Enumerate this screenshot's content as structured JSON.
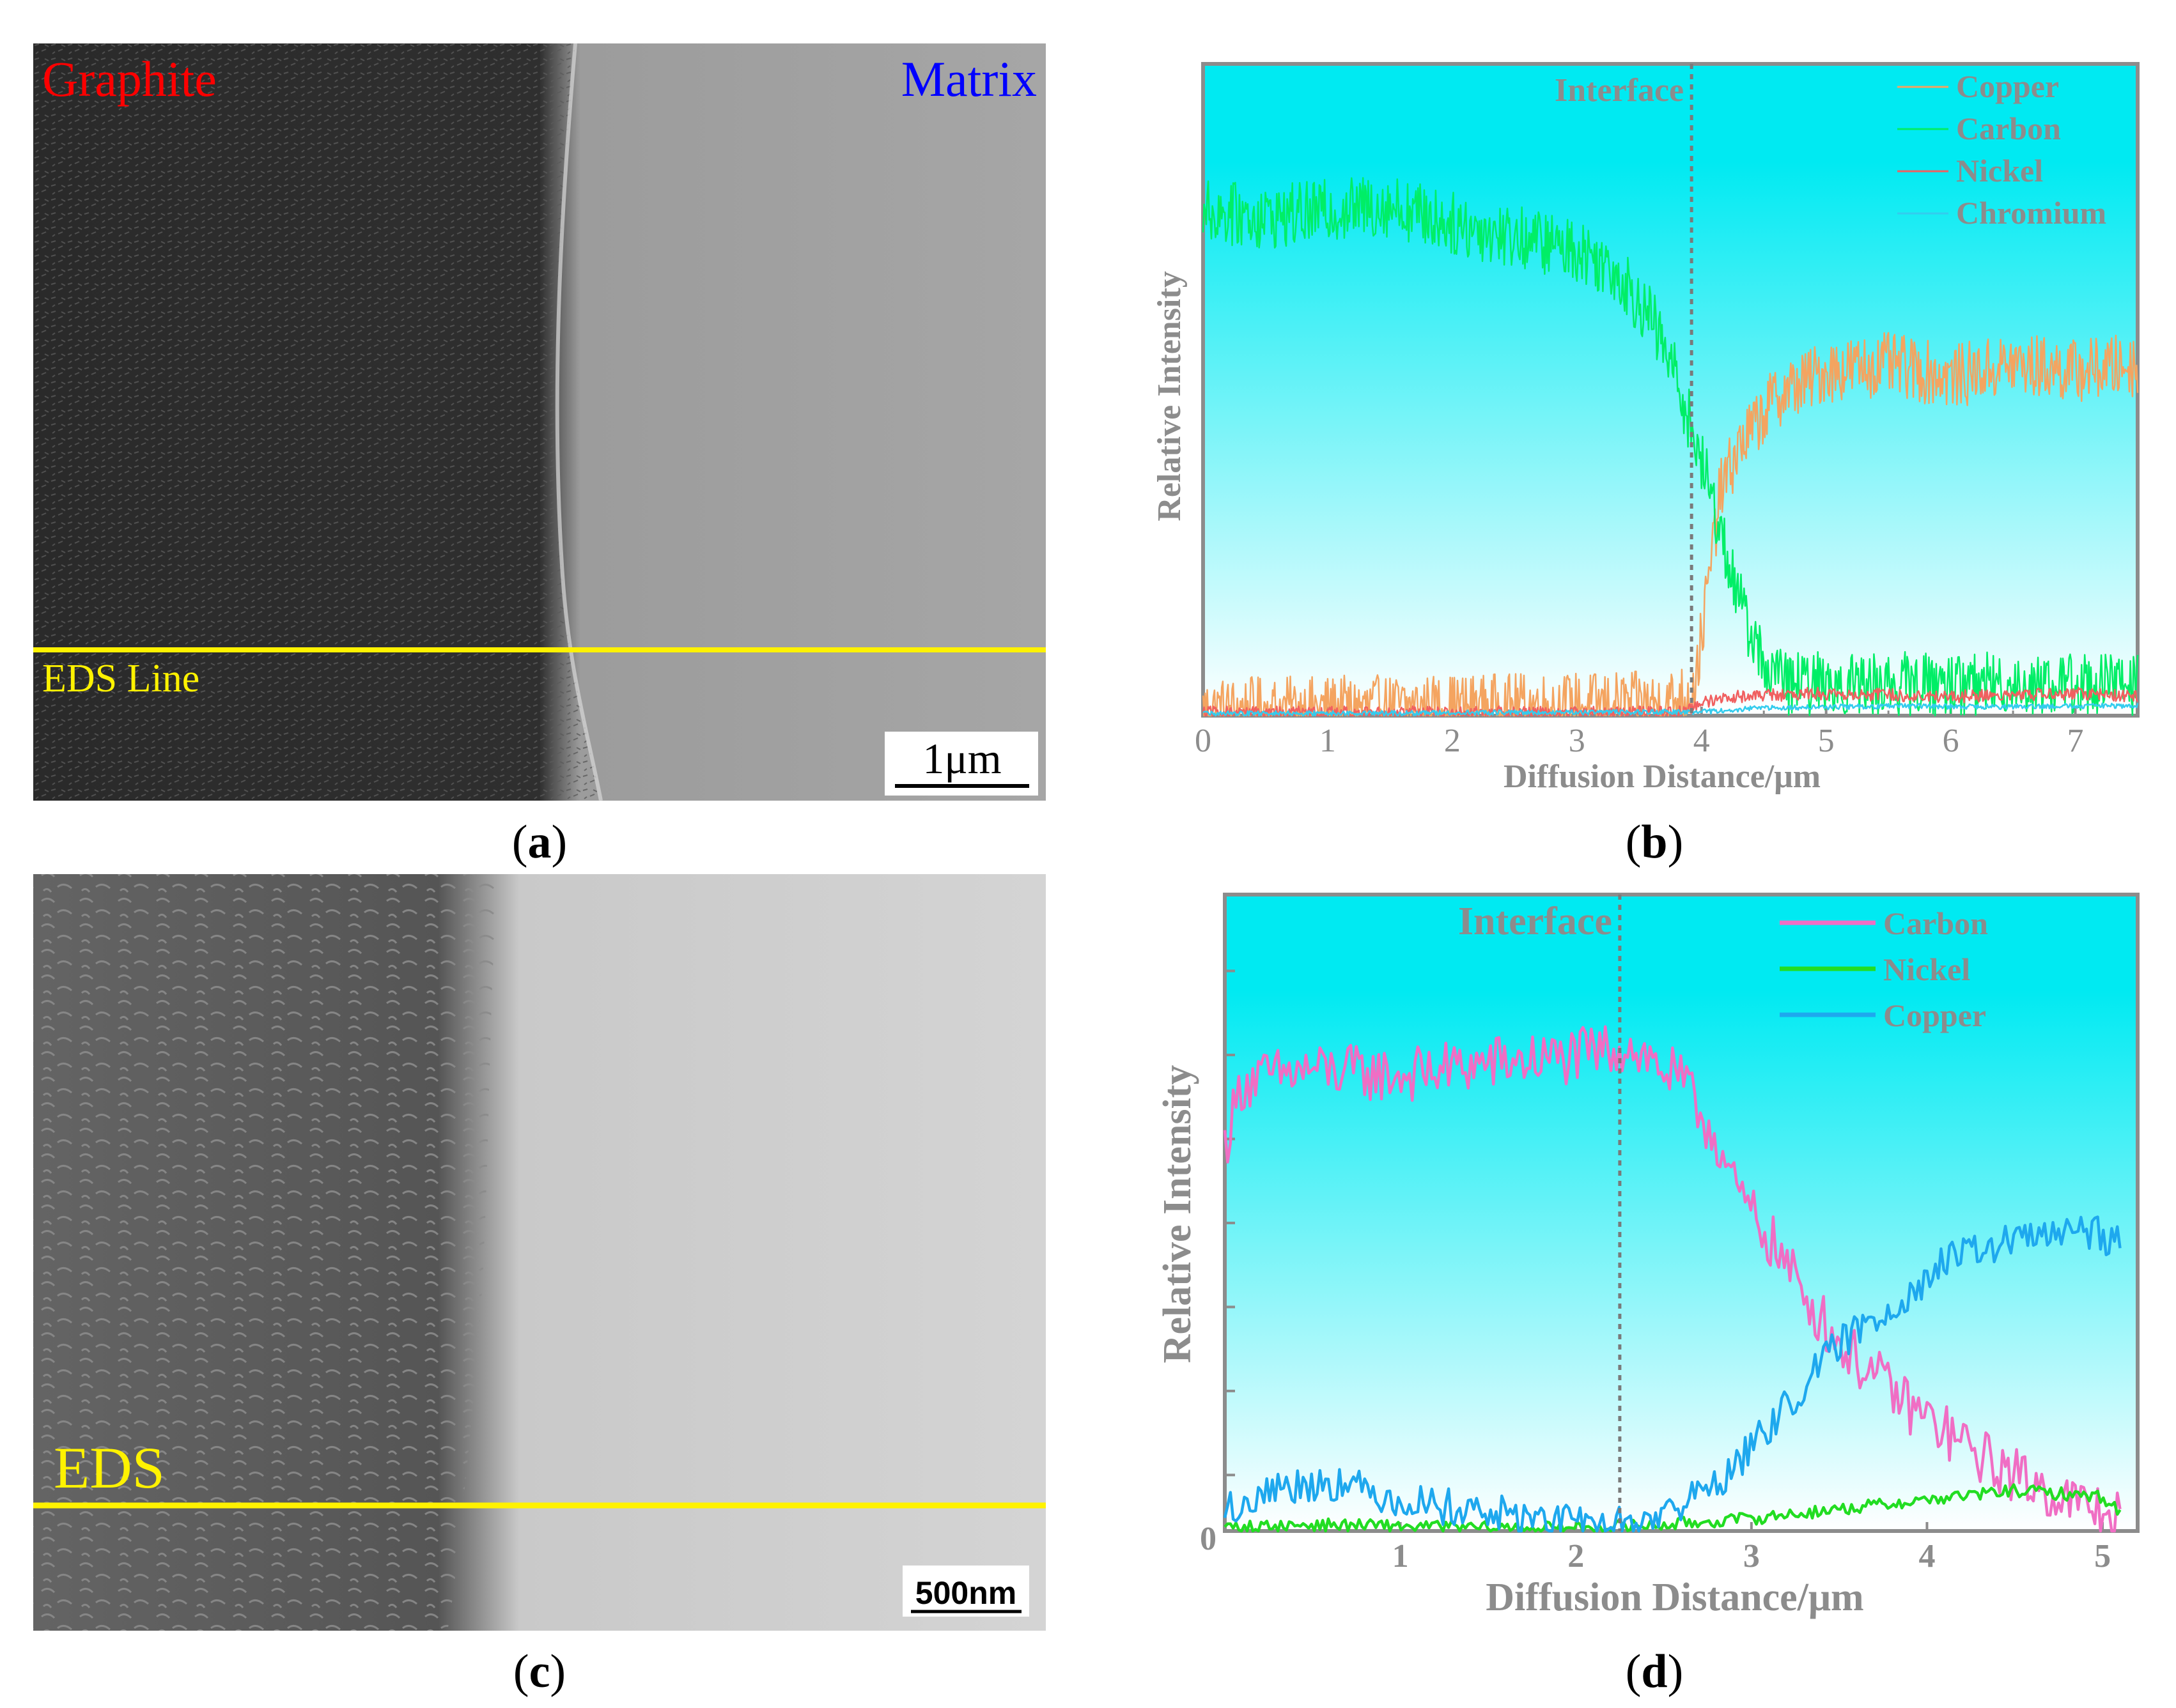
{
  "colors": {
    "chart_bg_top": "#00eaf2",
    "chart_bg_bottom": "#ffffff",
    "axis_gray": "#8c8c8c",
    "eds_line_yellow": "#fff200",
    "graphite_red": "#ff0000",
    "matrix_blue": "#0000ff"
  },
  "panels": {
    "a": {
      "caption_open": "(",
      "caption_letter": "a",
      "caption_close": ")",
      "label_left": "Graphite",
      "label_right": "Matrix",
      "eds_label": "EDS Line",
      "scale_bar": "1μm"
    },
    "b": {
      "caption_open": "(",
      "caption_letter": "b",
      "caption_close": ")"
    },
    "c": {
      "caption_open": "(",
      "caption_letter": "c",
      "caption_close": ")",
      "eds_label": "EDS",
      "scale_bar": "500nm"
    },
    "d": {
      "caption_open": "(",
      "caption_letter": "d",
      "caption_close": ")"
    }
  },
  "chart_data": [
    {
      "panel": "b",
      "type": "line",
      "xlabel": "Diffusion Distance/μm",
      "ylabel": "Relative Intensity",
      "xlim": [
        0,
        7.5
      ],
      "ylim": [
        0,
        1.0
      ],
      "xticks": [
        0,
        1,
        2,
        3,
        4,
        5,
        6,
        7
      ],
      "interface_label": "Interface",
      "interface_x": 3.92,
      "series": [
        {
          "name": "Copper",
          "color": "#f4a460",
          "x": [
            0,
            3.7,
            3.85,
            3.95,
            4.05,
            4.15,
            4.3,
            4.6,
            5.0,
            5.5,
            6.0,
            6.5,
            7.0,
            7.5
          ],
          "values": [
            0.01,
            0.02,
            0.03,
            0.05,
            0.2,
            0.35,
            0.42,
            0.5,
            0.54,
            0.55,
            0.53,
            0.55,
            0.54,
            0.55
          ],
          "noise": 0.05
        },
        {
          "name": "Carbon",
          "color": "#00ee66",
          "x": [
            0,
            0.5,
            1.0,
            1.5,
            2.0,
            2.5,
            3.0,
            3.3,
            3.6,
            3.8,
            3.95,
            4.1,
            4.3,
            4.5,
            4.7,
            5.0,
            6.0,
            7.0,
            7.5
          ],
          "values": [
            0.79,
            0.78,
            0.79,
            0.8,
            0.77,
            0.75,
            0.73,
            0.7,
            0.62,
            0.53,
            0.43,
            0.33,
            0.18,
            0.08,
            0.05,
            0.05,
            0.05,
            0.05,
            0.05
          ],
          "noise": 0.05
        },
        {
          "name": "Nickel",
          "color": "#f06060",
          "x": [
            0,
            3.85,
            4.0,
            4.2,
            5.0,
            6.0,
            7.0,
            7.5
          ],
          "values": [
            0.005,
            0.005,
            0.02,
            0.03,
            0.035,
            0.03,
            0.035,
            0.03
          ],
          "noise": 0.01
        },
        {
          "name": "Chromium",
          "color": "#33ccee",
          "x": [
            0,
            4.0,
            4.5,
            5.5,
            6.5,
            7.5
          ],
          "values": [
            0.003,
            0.006,
            0.012,
            0.015,
            0.014,
            0.016
          ],
          "noise": 0.004
        }
      ]
    },
    {
      "panel": "d",
      "type": "line",
      "xlabel": "Diffusion Distance/μm",
      "ylabel": "Relative Intensity",
      "xlim": [
        0,
        5.2
      ],
      "ylim": [
        0,
        1.0
      ],
      "xticks": [
        1,
        2,
        3,
        4,
        5
      ],
      "y_origin_label": "0",
      "interface_label": "Interface",
      "interface_x": 2.25,
      "series": [
        {
          "name": "Carbon",
          "color": "#f06ec4",
          "x": [
            0,
            0.1,
            0.5,
            1.0,
            1.5,
            2.0,
            2.3,
            2.6,
            2.8,
            2.9,
            3.1,
            3.3,
            3.5,
            3.7,
            3.9,
            4.1,
            4.3,
            4.5,
            4.8,
            5.1
          ],
          "values": [
            0.62,
            0.72,
            0.74,
            0.73,
            0.75,
            0.76,
            0.78,
            0.72,
            0.63,
            0.55,
            0.47,
            0.38,
            0.3,
            0.25,
            0.2,
            0.16,
            0.12,
            0.09,
            0.05,
            0.02
          ],
          "noise": 0.045
        },
        {
          "name": "Nickel",
          "color": "#22dd22",
          "x": [
            0,
            0.5,
            1.0,
            1.5,
            2.0,
            2.5,
            3.0,
            3.5,
            4.0,
            4.5,
            5.0,
            5.1
          ],
          "values": [
            0.005,
            0.01,
            0.008,
            0.005,
            0.005,
            0.01,
            0.02,
            0.035,
            0.05,
            0.065,
            0.055,
            0.03
          ],
          "noise": 0.01
        },
        {
          "name": "Copper",
          "color": "#1ea8ee",
          "x": [
            0,
            0.3,
            0.6,
            1.0,
            1.5,
            2.0,
            2.3,
            2.6,
            2.9,
            3.2,
            3.5,
            3.8,
            4.1,
            4.4,
            4.8,
            5.1
          ],
          "values": [
            0.03,
            0.07,
            0.08,
            0.05,
            0.03,
            0.01,
            0.01,
            0.04,
            0.1,
            0.2,
            0.3,
            0.36,
            0.43,
            0.46,
            0.48,
            0.47
          ],
          "noise": 0.03
        }
      ]
    }
  ]
}
